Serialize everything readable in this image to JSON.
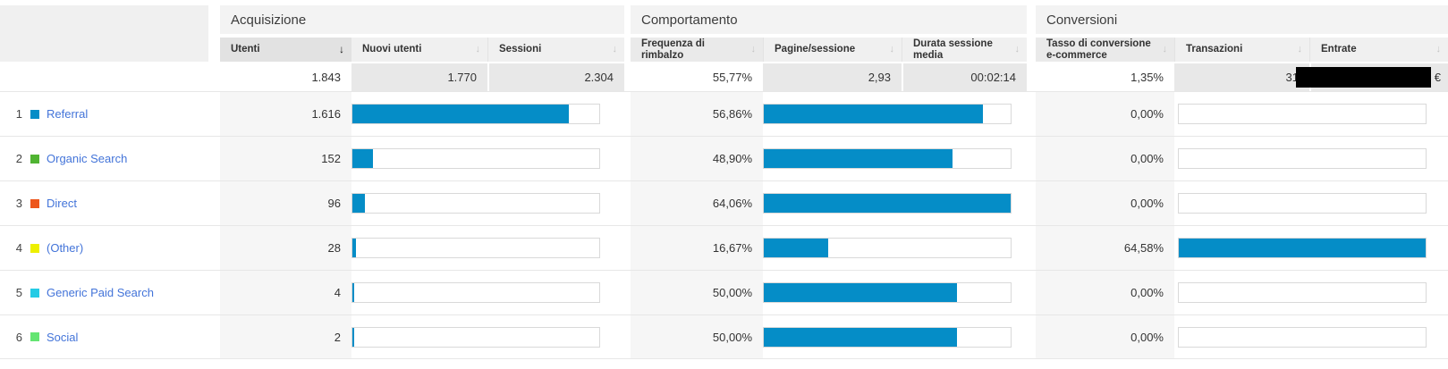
{
  "header": {
    "groups": [
      {
        "label": "Acquisizione"
      },
      {
        "label": "Comportamento"
      },
      {
        "label": "Conversioni"
      }
    ],
    "columns": [
      {
        "label": "Utenti",
        "sorted": "desc"
      },
      {
        "label": "Nuovi utenti"
      },
      {
        "label": "Sessioni"
      },
      {
        "label": "Frequenza di rimbalzo"
      },
      {
        "label": "Pagine/sessione"
      },
      {
        "label": "Durata sessione media"
      },
      {
        "label": "Tasso di conversione e-commerce"
      },
      {
        "label": "Transazioni"
      },
      {
        "label": "Entrate"
      }
    ],
    "sort_icon": "↓"
  },
  "totals": {
    "utenti": "1.843",
    "nuovi_utenti": "1.770",
    "sessioni": "2.304",
    "frequenza_rimbalzo": "55,77%",
    "pagine_sessione": "2,93",
    "durata_sessione_media": "00:02:14",
    "tasso_conversione": "1,35%",
    "transazioni": "31",
    "entrate_redacted": true,
    "entrate_currency": "€"
  },
  "rows": [
    {
      "rank": "1",
      "label": "Referral",
      "swatch_color": "#058dc7",
      "utenti": "1.616",
      "utenti_bar_pct": 87.7,
      "frequenza_rimbalzo": "56,86%",
      "frequenza_bar_pct": 88.8,
      "tasso_conversione": "0,00%",
      "tasso_bar_pct": 0
    },
    {
      "rank": "2",
      "label": "Organic Search",
      "swatch_color": "#50b432",
      "utenti": "152",
      "utenti_bar_pct": 8.2,
      "frequenza_rimbalzo": "48,90%",
      "frequenza_bar_pct": 76.3,
      "tasso_conversione": "0,00%",
      "tasso_bar_pct": 0
    },
    {
      "rank": "3",
      "label": "Direct",
      "swatch_color": "#ed561b",
      "utenti": "96",
      "utenti_bar_pct": 5.2,
      "frequenza_rimbalzo": "64,06%",
      "frequenza_bar_pct": 100,
      "tasso_conversione": "0,00%",
      "tasso_bar_pct": 0
    },
    {
      "rank": "4",
      "label": "(Other)",
      "swatch_color": "#edef00",
      "utenti": "28",
      "utenti_bar_pct": 1.5,
      "frequenza_rimbalzo": "16,67%",
      "frequenza_bar_pct": 26.0,
      "tasso_conversione": "64,58%",
      "tasso_bar_pct": 100
    },
    {
      "rank": "5",
      "label": "Generic Paid Search",
      "swatch_color": "#24cbe5",
      "utenti": "4",
      "utenti_bar_pct": 0.25,
      "frequenza_rimbalzo": "50,00%",
      "frequenza_bar_pct": 78.1,
      "tasso_conversione": "0,00%",
      "tasso_bar_pct": 0
    },
    {
      "rank": "6",
      "label": "Social",
      "swatch_color": "#64e572",
      "utenti": "2",
      "utenti_bar_pct": 0.15,
      "frequenza_rimbalzo": "50,00%",
      "frequenza_bar_pct": 78.1,
      "tasso_conversione": "0,00%",
      "tasso_bar_pct": 0
    }
  ],
  "colors": {
    "bar_fill": "#058dc7",
    "sorted_header_bg": "#e2e2e2"
  }
}
